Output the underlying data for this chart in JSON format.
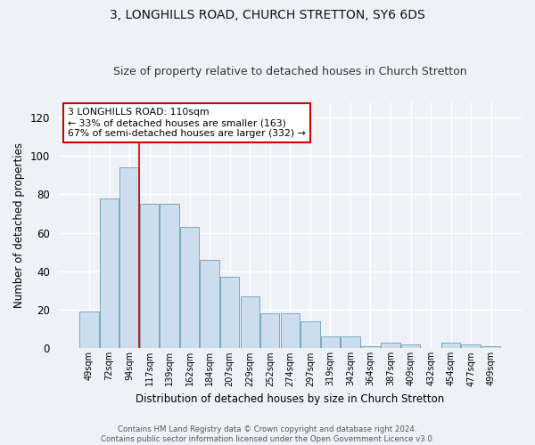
{
  "title": "3, LONGHILLS ROAD, CHURCH STRETTON, SY6 6DS",
  "subtitle": "Size of property relative to detached houses in Church Stretton",
  "xlabel": "Distribution of detached houses by size in Church Stretton",
  "ylabel": "Number of detached properties",
  "categories": [
    "49sqm",
    "72sqm",
    "94sqm",
    "117sqm",
    "139sqm",
    "162sqm",
    "184sqm",
    "207sqm",
    "229sqm",
    "252sqm",
    "274sqm",
    "297sqm",
    "319sqm",
    "342sqm",
    "364sqm",
    "387sqm",
    "409sqm",
    "432sqm",
    "454sqm",
    "477sqm",
    "499sqm"
  ],
  "values": [
    19,
    78,
    94,
    75,
    75,
    63,
    46,
    37,
    27,
    18,
    18,
    14,
    6,
    6,
    1,
    3,
    2,
    0,
    3,
    2,
    1
  ],
  "bar_color": "#ccdded",
  "bar_edge_color": "#7aaabb",
  "ylim": [
    0,
    128
  ],
  "yticks": [
    0,
    20,
    40,
    60,
    80,
    100,
    120
  ],
  "red_line_index": 2.5,
  "annotation_text": "3 LONGHILLS ROAD: 110sqm\n← 33% of detached houses are smaller (163)\n67% of semi-detached houses are larger (332) →",
  "annotation_box_color": "#ffffff",
  "annotation_border_color": "#cc0000",
  "footer_text": "Contains HM Land Registry data © Crown copyright and database right 2024.\nContains public sector information licensed under the Open Government Licence v3.0.",
  "background_color": "#eef2f7",
  "grid_color": "#ffffff",
  "title_fontsize": 10,
  "subtitle_fontsize": 9
}
